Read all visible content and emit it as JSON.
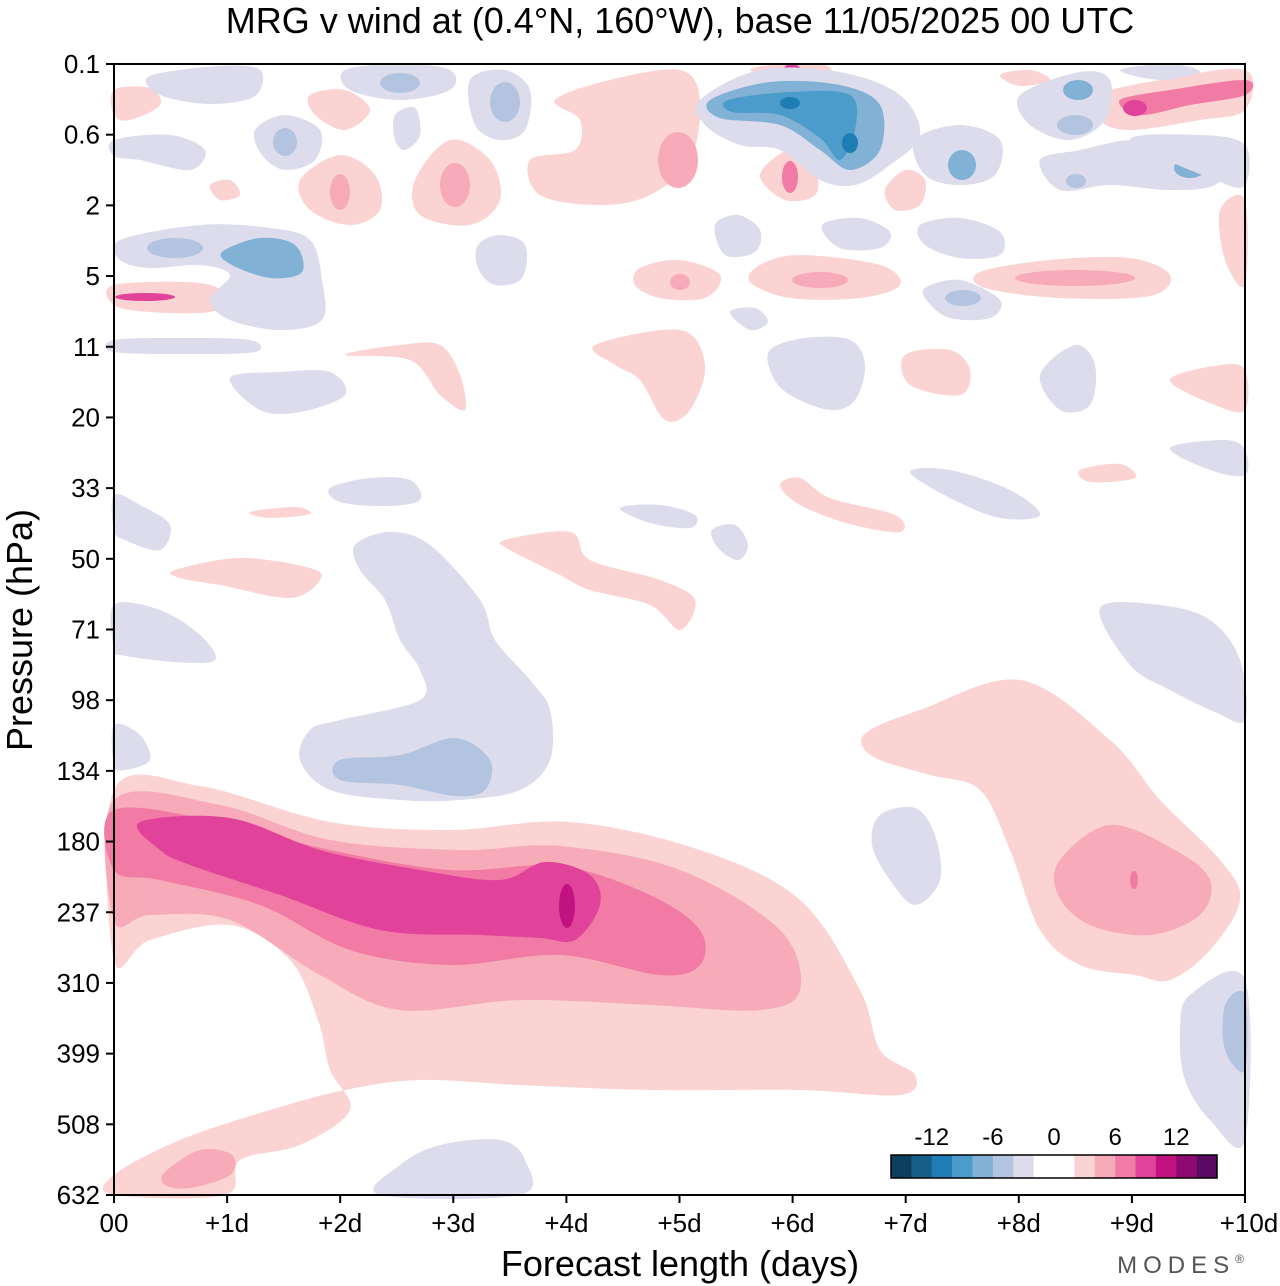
{
  "chart_data": {
    "type": "heatmap",
    "title": "MRG v wind at (0.4°N, 160°W),  base 11/05/2025  00 UTC",
    "xlabel": "Forecast length (days)",
    "ylabel": "Pressure (hPa)",
    "x_ticks": [
      "00",
      "+1d",
      "+2d",
      "+3d",
      "+4d",
      "+5d",
      "+6d",
      "+7d",
      "+8d",
      "+9d",
      "+10d"
    ],
    "y_ticks": [
      "0.1",
      "0.6",
      "2",
      "5",
      "11",
      "20",
      "33",
      "50",
      "71",
      "98",
      "134",
      "180",
      "237",
      "310",
      "399",
      "508",
      "632"
    ],
    "xlim": [
      0,
      10
    ],
    "colorbar": {
      "labels": [
        "-12",
        "-6",
        "0",
        "6",
        "12"
      ],
      "label_values": [
        -12,
        -6,
        0,
        6,
        12
      ],
      "range": [
        -16,
        16
      ],
      "colors": [
        "#0d3f5e",
        "#145f8a",
        "#1f7db5",
        "#4b9ccb",
        "#82b1d6",
        "#b3c4e0",
        "#dcdcec",
        "#ffffff",
        "#ffffff",
        "#fbd3d3",
        "#f7aab8",
        "#f27ba6",
        "#e2439a",
        "#c0137f",
        "#8d0a73",
        "#5a0a63"
      ]
    },
    "features": [
      {
        "name": "jet-core",
        "x": [
          0,
          1,
          2,
          3,
          4,
          5,
          6
        ],
        "y_level": [
          180,
          200,
          215,
          230,
          237,
          250,
          280
        ],
        "peak": [
          8,
          11,
          10,
          10,
          14,
          8,
          5
        ]
      },
      {
        "name": "pos-anomaly-day9",
        "x": 9,
        "level": 237,
        "peak": 8
      },
      {
        "name": "neg-anomaly-upper-day6",
        "x": 6,
        "level": 0.4,
        "peak": -12
      },
      {
        "name": "pos-anomaly-upper-day9.5",
        "x": 9.6,
        "level": 0.3,
        "peak": 11
      }
    ],
    "brand": "MODES",
    "brand_mark": "®"
  }
}
